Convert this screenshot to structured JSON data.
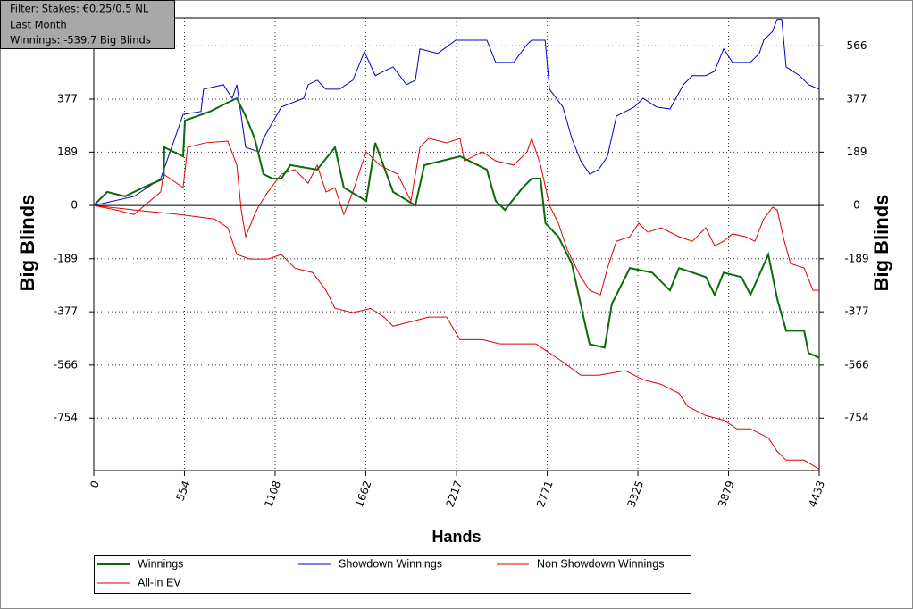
{
  "chart_data": {
    "type": "line",
    "filter_lines": [
      "Filter: Stakes: €0.25/0.5 NL",
      "Last Month",
      "Winnings: -539.7 Big Blinds"
    ],
    "x_label": "Hands",
    "y_label": "Big Blinds",
    "y2_label": "Big Blinds",
    "xlim": [
      0,
      4433
    ],
    "xticks": [
      0,
      554,
      1108,
      1662,
      2217,
      2771,
      3325,
      3879,
      4433
    ],
    "ylim": [
      -940,
      665
    ],
    "yticks": [
      -754,
      -566,
      -377,
      -189,
      0,
      189,
      377,
      566
    ],
    "y2lim": [
      -940,
      665
    ],
    "y2ticks": [
      -754,
      -566,
      -377,
      -189,
      0,
      189,
      377,
      566
    ],
    "grid": true,
    "legend": "bottom",
    "series": [
      {
        "name": "Winnings",
        "color": "#0a6b0a",
        "x": [
          0,
          82,
          191,
          300,
          427,
          431,
          546,
          557,
          710,
          819,
          874,
          928,
          983,
          1037,
          1092,
          1146,
          1201,
          1365,
          1474,
          1528,
          1665,
          1720,
          1829,
          1965,
          2020,
          2238,
          2402,
          2456,
          2512,
          2621,
          2676,
          2730,
          2760,
          2839,
          2921,
          2975,
          3030,
          3122,
          3166,
          3276,
          3412,
          3521,
          3576,
          3741,
          3794,
          3849,
          3958,
          4013,
          4122,
          4177,
          4231,
          4341,
          4368,
          4433
        ],
        "values": [
          0,
          48,
          32,
          63,
          95,
          206,
          174,
          301,
          333,
          365,
          380,
          317,
          238,
          111,
          95,
          95,
          143,
          127,
          206,
          63,
          16,
          222,
          48,
          0,
          143,
          174,
          127,
          16,
          -16,
          63,
          95,
          95,
          -63,
          -111,
          -206,
          -349,
          -492,
          -504,
          -349,
          -222,
          -238,
          -301,
          -222,
          -254,
          -317,
          -238,
          -254,
          -317,
          -174,
          -333,
          -444,
          -444,
          -523,
          -540
        ]
      },
      {
        "name": "Showdown Winnings",
        "color": "#0000cc",
        "x": [
          0,
          246,
          409,
          546,
          655,
          671,
          792,
          846,
          874,
          928,
          1010,
          1037,
          1146,
          1283,
          1310,
          1365,
          1419,
          1501,
          1583,
          1654,
          1720,
          1774,
          1829,
          1911,
          1965,
          1993,
          2102,
          2211,
          2265,
          2402,
          2456,
          2566,
          2648,
          2676,
          2758,
          2785,
          2867,
          2921,
          2976,
          3030,
          3085,
          3139,
          3194,
          3303,
          3357,
          3439,
          3521,
          3603,
          3658,
          3740,
          3794,
          3849,
          3903,
          4012,
          4067,
          4094,
          4149,
          4176,
          4204,
          4231,
          4313,
          4368,
          4433
        ],
        "values": [
          0,
          32,
          95,
          323,
          333,
          412,
          428,
          380,
          428,
          206,
          190,
          238,
          349,
          380,
          428,
          444,
          412,
          412,
          444,
          545,
          460,
          476,
          491,
          428,
          444,
          555,
          539,
          586,
          586,
          586,
          507,
          507,
          571,
          586,
          586,
          412,
          349,
          238,
          158,
          111,
          127,
          174,
          317,
          349,
          380,
          349,
          342,
          428,
          460,
          460,
          476,
          555,
          507,
          507,
          539,
          586,
          618,
          660,
          660,
          491,
          460,
          428,
          412
        ]
      },
      {
        "name": "Non Showdown Winnings",
        "color": "#dd0000",
        "x": [
          0,
          136,
          246,
          409,
          426,
          546,
          573,
          682,
          819,
          874,
          901,
          928,
          983,
          1010,
          1064,
          1146,
          1228,
          1310,
          1365,
          1419,
          1474,
          1528,
          1583,
          1637,
          1665,
          1747,
          1856,
          1938,
          1993,
          2047,
          2156,
          2238,
          2265,
          2375,
          2456,
          2566,
          2648,
          2676,
          2730,
          2785,
          2839,
          2894,
          2976,
          3030,
          3096,
          3139,
          3194,
          3276,
          3330,
          3385,
          3467,
          3576,
          3658,
          3740,
          3794,
          3849,
          3903,
          3985,
          4040,
          4094,
          4149,
          4176,
          4220,
          4258,
          4341,
          4395,
          4433
        ],
        "values": [
          0,
          -16,
          -32,
          48,
          111,
          63,
          206,
          222,
          228,
          143,
          -16,
          -111,
          -32,
          0,
          48,
          111,
          127,
          79,
          143,
          48,
          63,
          -32,
          48,
          143,
          190,
          143,
          111,
          16,
          206,
          238,
          222,
          238,
          158,
          190,
          158,
          143,
          190,
          238,
          143,
          0,
          -63,
          -158,
          -254,
          -301,
          -317,
          -222,
          -127,
          -111,
          -63,
          -95,
          -79,
          -111,
          -127,
          -79,
          -143,
          -127,
          -101,
          -111,
          -127,
          -48,
          -6,
          -16,
          -127,
          -206,
          -222,
          -301,
          -301
        ]
      },
      {
        "name": "All-In EV",
        "color": "#dd0000",
        "x": [
          0,
          246,
          519,
          737,
          819,
          874,
          955,
          1064,
          1146,
          1228,
          1337,
          1419,
          1474,
          1583,
          1692,
          1774,
          1829,
          1938,
          2047,
          2156,
          2238,
          2375,
          2484,
          2593,
          2702,
          2785,
          2867,
          2976,
          3085,
          3248,
          3357,
          3467,
          3576,
          3630,
          3740,
          3849,
          3931,
          4013,
          4122,
          4176,
          4231,
          4341,
          4433
        ],
        "values": [
          0,
          -16,
          -32,
          -48,
          -79,
          -174,
          -190,
          -190,
          -174,
          -222,
          -238,
          -301,
          -365,
          -380,
          -365,
          -396,
          -428,
          -412,
          -396,
          -396,
          -476,
          -476,
          -491,
          -491,
          -491,
          -523,
          -555,
          -602,
          -602,
          -586,
          -618,
          -634,
          -666,
          -713,
          -745,
          -761,
          -792,
          -792,
          -824,
          -872,
          -903,
          -903,
          -935
        ]
      }
    ]
  }
}
